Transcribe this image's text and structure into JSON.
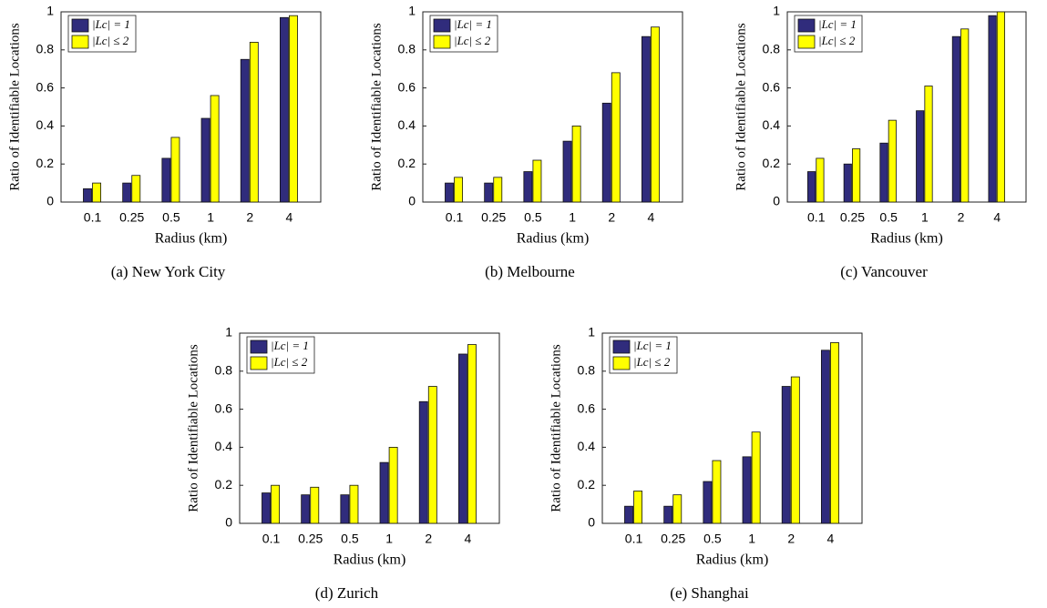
{
  "chart_data": [
    {
      "type": "bar",
      "title": "(a)  New York City",
      "xlabel": "Radius (km)",
      "ylabel": "Ratio of Identifiable Locations",
      "categories": [
        "0.1",
        "0.25",
        "0.5",
        "1",
        "2",
        "4"
      ],
      "series": [
        {
          "name": "|Lc| = 1",
          "color": "#302c7c",
          "values": [
            0.07,
            0.1,
            0.23,
            0.44,
            0.75,
            0.97
          ]
        },
        {
          "name": "|Lc| ≤ 2",
          "color": "#ffff00",
          "values": [
            0.1,
            0.14,
            0.34,
            0.56,
            0.84,
            0.98
          ]
        }
      ],
      "ylim": [
        0,
        1
      ],
      "yticks": [
        0,
        0.2,
        0.4,
        0.6,
        0.8,
        1
      ],
      "legend": "upper left"
    },
    {
      "type": "bar",
      "title": "(b)  Melbourne",
      "xlabel": "Radius (km)",
      "ylabel": "Ratio of Identifiable Locations",
      "categories": [
        "0.1",
        "0.25",
        "0.5",
        "1",
        "2",
        "4"
      ],
      "series": [
        {
          "name": "|Lc| = 1",
          "color": "#302c7c",
          "values": [
            0.1,
            0.1,
            0.16,
            0.32,
            0.52,
            0.87
          ]
        },
        {
          "name": "|Lc| ≤ 2",
          "color": "#ffff00",
          "values": [
            0.13,
            0.13,
            0.22,
            0.4,
            0.68,
            0.92
          ]
        }
      ],
      "ylim": [
        0,
        1
      ],
      "yticks": [
        0,
        0.2,
        0.4,
        0.6,
        0.8,
        1
      ],
      "legend": "upper left"
    },
    {
      "type": "bar",
      "title": "(c)  Vancouver",
      "xlabel": "Radius (km)",
      "ylabel": "Ratio of Identifiable Locations",
      "categories": [
        "0.1",
        "0.25",
        "0.5",
        "1",
        "2",
        "4"
      ],
      "series": [
        {
          "name": "|Lc| = 1",
          "color": "#302c7c",
          "values": [
            0.16,
            0.2,
            0.31,
            0.48,
            0.87,
            0.98
          ]
        },
        {
          "name": "|Lc| ≤ 2",
          "color": "#ffff00",
          "values": [
            0.23,
            0.28,
            0.43,
            0.61,
            0.91,
            1.0
          ]
        }
      ],
      "ylim": [
        0,
        1
      ],
      "yticks": [
        0,
        0.2,
        0.4,
        0.6,
        0.8,
        1
      ],
      "legend": "upper left"
    },
    {
      "type": "bar",
      "title": "(d)  Zurich",
      "xlabel": "Radius (km)",
      "ylabel": "Ratio of Identifiable Locations",
      "categories": [
        "0.1",
        "0.25",
        "0.5",
        "1",
        "2",
        "4"
      ],
      "series": [
        {
          "name": "|Lc| = 1",
          "color": "#302c7c",
          "values": [
            0.16,
            0.15,
            0.15,
            0.32,
            0.64,
            0.89
          ]
        },
        {
          "name": "|Lc| ≤ 2",
          "color": "#ffff00",
          "values": [
            0.2,
            0.19,
            0.2,
            0.4,
            0.72,
            0.94
          ]
        }
      ],
      "ylim": [
        0,
        1
      ],
      "yticks": [
        0,
        0.2,
        0.4,
        0.6,
        0.8,
        1
      ],
      "legend": "upper left"
    },
    {
      "type": "bar",
      "title": "(e)  Shanghai",
      "xlabel": "Radius (km)",
      "ylabel": "Ratio of Identifiable Locations",
      "categories": [
        "0.1",
        "0.25",
        "0.5",
        "1",
        "2",
        "4"
      ],
      "series": [
        {
          "name": "|Lc| = 1",
          "color": "#302c7c",
          "values": [
            0.09,
            0.09,
            0.22,
            0.35,
            0.72,
            0.91
          ]
        },
        {
          "name": "|Lc| ≤ 2",
          "color": "#ffff00",
          "values": [
            0.17,
            0.15,
            0.33,
            0.48,
            0.77,
            0.95
          ]
        }
      ],
      "ylim": [
        0,
        1
      ],
      "yticks": [
        0,
        0.2,
        0.4,
        0.6,
        0.8,
        1
      ],
      "legend": "upper left"
    }
  ]
}
